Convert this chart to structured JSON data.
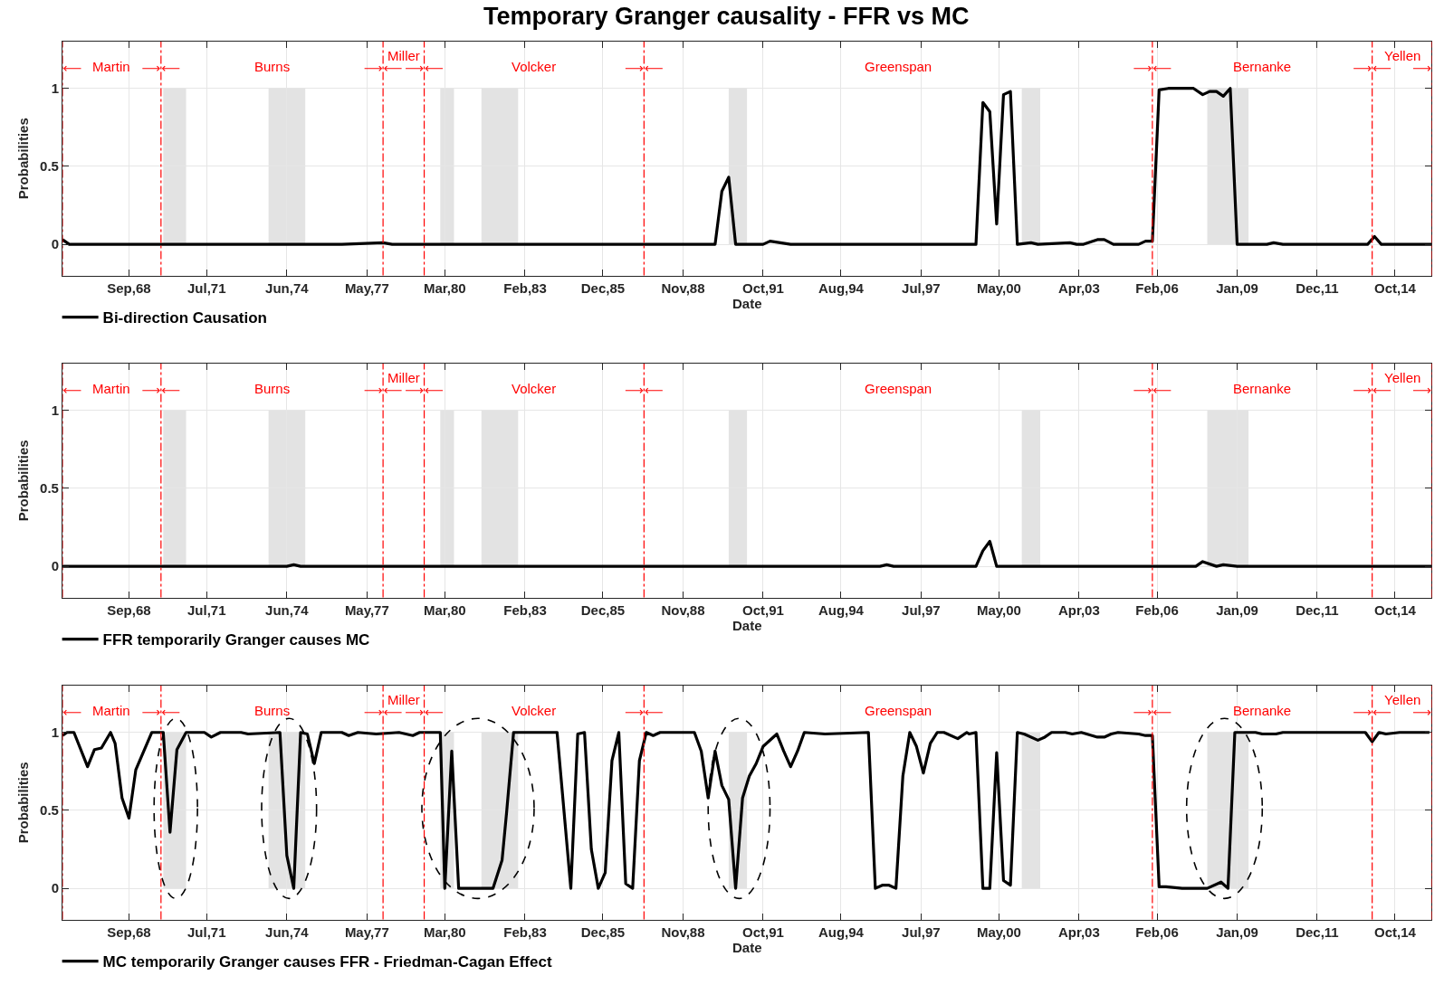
{
  "chart_data": [
    {
      "type": "line",
      "title": "Temporary Granger causality - FFR vs MC",
      "xlabel": "Date",
      "ylabel": "Probabilities",
      "series": [
        {
          "name": "Bi-direction Causation",
          "color": "#000000",
          "x": [
            "1966-04",
            "1966-07",
            "1974-06",
            "1976-06",
            "1977-12",
            "1978-04",
            "1990-01",
            "1990-04",
            "1990-07",
            "1990-10",
            "1991-10",
            "1992-01",
            "1992-10",
            "1999-07",
            "1999-10",
            "2000-01",
            "2000-04",
            "2000-07",
            "2000-10",
            "2001-01",
            "2001-07",
            "2001-10",
            "2002-12",
            "2003-03",
            "2003-06",
            "2003-12",
            "2004-03",
            "2004-07",
            "2005-06",
            "2005-09",
            "2005-12",
            "2006-03",
            "2006-07",
            "2007-01",
            "2007-06",
            "2007-10",
            "2008-01",
            "2008-04",
            "2008-07",
            "2008-10",
            "2009-01",
            "2010-02",
            "2010-05",
            "2010-09",
            "2013-10",
            "2014-01",
            "2014-04",
            "2016-02"
          ],
          "values": [
            0.03,
            0,
            0,
            0,
            0.01,
            0,
            0,
            0.34,
            0.43,
            0,
            0,
            0.02,
            0,
            0,
            0.91,
            0.85,
            0.13,
            0.96,
            0.98,
            0,
            0.01,
            0,
            0.01,
            0,
            0,
            0.03,
            0.03,
            0,
            0,
            0.02,
            0.02,
            0.99,
            1,
            1,
            1,
            0.96,
            0.98,
            0.98,
            0.95,
            1,
            0,
            0,
            0.01,
            0,
            0,
            0.05,
            0,
            0
          ]
        }
      ],
      "xlim": [
        "1966-04",
        "2016-02"
      ],
      "ylim": [
        -0.2,
        1.3
      ],
      "yticks": [
        0,
        0.5,
        1
      ],
      "xticks": [
        {
          "value": "1968-09",
          "label": "Sep,68"
        },
        {
          "value": "1971-07",
          "label": "Jul,71"
        },
        {
          "value": "1974-06",
          "label": "Jun,74"
        },
        {
          "value": "1977-05",
          "label": "May,77"
        },
        {
          "value": "1980-03",
          "label": "Mar,80"
        },
        {
          "value": "1983-02",
          "label": "Feb,83"
        },
        {
          "value": "1985-12",
          "label": "Dec,85"
        },
        {
          "value": "1988-11",
          "label": "Nov,88"
        },
        {
          "value": "1991-10",
          "label": "Oct,91"
        },
        {
          "value": "1994-08",
          "label": "Aug,94"
        },
        {
          "value": "1997-07",
          "label": "Jul,97"
        },
        {
          "value": "2000-05",
          "label": "May,00"
        },
        {
          "value": "2003-04",
          "label": "Apr,03"
        },
        {
          "value": "2006-02",
          "label": "Feb,06"
        },
        {
          "value": "2009-01",
          "label": "Jan,09"
        },
        {
          "value": "2011-12",
          "label": "Dec,11"
        },
        {
          "value": "2014-10",
          "label": "Oct,14"
        }
      ],
      "grid": true,
      "legend": "bottom left",
      "ref_lines": [
        {
          "axis": "x",
          "value": "1966-04",
          "label": "Martin",
          "color": "#ff0000",
          "line_style": "dashdot"
        },
        {
          "axis": "x",
          "value": "1969-11",
          "label": "Burns",
          "color": "#ff0000",
          "line_style": "dashdot"
        },
        {
          "axis": "x",
          "value": "1977-12",
          "label": "Miller",
          "color": "#ff0000",
          "line_style": "dashdot"
        },
        {
          "axis": "x",
          "value": "1979-06",
          "label": "Volcker",
          "color": "#ff0000",
          "line_style": "dashdot"
        },
        {
          "axis": "x",
          "value": "1987-06",
          "label": "Greenspan",
          "color": "#ff0000",
          "line_style": "dashdot"
        },
        {
          "axis": "x",
          "value": "2005-12",
          "label": "Bernanke",
          "color": "#ff0000",
          "line_style": "dashdot"
        },
        {
          "axis": "x",
          "value": "2013-12",
          "label": "Yellen",
          "color": "#ff0000",
          "line_style": "dashdot"
        },
        {
          "axis": "x",
          "value": "2016-02",
          "color": "#ff0000",
          "line_style": "dashdot"
        }
      ],
      "bands": [
        {
          "axis": "x",
          "from": "1969-12",
          "to": "1970-10",
          "color": "#e3e3e3"
        },
        {
          "axis": "x",
          "from": "1973-10",
          "to": "1975-02",
          "color": "#e3e3e3"
        },
        {
          "axis": "x",
          "from": "1980-01",
          "to": "1980-07",
          "color": "#e3e3e3"
        },
        {
          "axis": "x",
          "from": "1981-07",
          "to": "1982-11",
          "color": "#e3e3e3"
        },
        {
          "axis": "x",
          "from": "1990-07",
          "to": "1991-03",
          "color": "#e3e3e3"
        },
        {
          "axis": "x",
          "from": "2001-03",
          "to": "2001-11",
          "color": "#e3e3e3"
        },
        {
          "axis": "x",
          "from": "2007-12",
          "to": "2009-06",
          "color": "#e3e3e3"
        }
      ]
    },
    {
      "type": "line",
      "xlabel": "Date",
      "ylabel": "Probabilities",
      "series": [
        {
          "name": "FFR temporarily Granger causes MC",
          "color": "#000000",
          "x": [
            "1966-04",
            "1974-06",
            "1974-09",
            "1974-12",
            "1996-01",
            "1996-04",
            "1996-07",
            "1999-07",
            "1999-10",
            "2000-01",
            "2000-04",
            "2007-07",
            "2007-10",
            "2008-04",
            "2008-07",
            "2009-01",
            "2016-02"
          ],
          "values": [
            0,
            0,
            0.01,
            0,
            0,
            0.01,
            0,
            0,
            0.1,
            0.16,
            0,
            0,
            0.03,
            0,
            0.01,
            0,
            0
          ]
        }
      ],
      "xlim": [
        "1966-04",
        "2016-02"
      ],
      "ylim": [
        -0.2,
        1.3
      ],
      "yticks": [
        0,
        0.5,
        1
      ],
      "xticks": [
        {
          "value": "1968-09",
          "label": "Sep,68"
        },
        {
          "value": "1971-07",
          "label": "Jul,71"
        },
        {
          "value": "1974-06",
          "label": "Jun,74"
        },
        {
          "value": "1977-05",
          "label": "May,77"
        },
        {
          "value": "1980-03",
          "label": "Mar,80"
        },
        {
          "value": "1983-02",
          "label": "Feb,83"
        },
        {
          "value": "1985-12",
          "label": "Dec,85"
        },
        {
          "value": "1988-11",
          "label": "Nov,88"
        },
        {
          "value": "1991-10",
          "label": "Oct,91"
        },
        {
          "value": "1994-08",
          "label": "Aug,94"
        },
        {
          "value": "1997-07",
          "label": "Jul,97"
        },
        {
          "value": "2000-05",
          "label": "May,00"
        },
        {
          "value": "2003-04",
          "label": "Apr,03"
        },
        {
          "value": "2006-02",
          "label": "Feb,06"
        },
        {
          "value": "2009-01",
          "label": "Jan,09"
        },
        {
          "value": "2011-12",
          "label": "Dec,11"
        },
        {
          "value": "2014-10",
          "label": "Oct,14"
        }
      ],
      "grid": true,
      "legend": "bottom left",
      "ref_lines": [
        {
          "axis": "x",
          "value": "1966-04",
          "label": "Martin",
          "color": "#ff0000",
          "line_style": "dashdot"
        },
        {
          "axis": "x",
          "value": "1969-11",
          "label": "Burns",
          "color": "#ff0000",
          "line_style": "dashdot"
        },
        {
          "axis": "x",
          "value": "1977-12",
          "label": "Miller",
          "color": "#ff0000",
          "line_style": "dashdot"
        },
        {
          "axis": "x",
          "value": "1979-06",
          "label": "Volcker",
          "color": "#ff0000",
          "line_style": "dashdot"
        },
        {
          "axis": "x",
          "value": "1987-06",
          "label": "Greenspan",
          "color": "#ff0000",
          "line_style": "dashdot"
        },
        {
          "axis": "x",
          "value": "2005-12",
          "label": "Bernanke",
          "color": "#ff0000",
          "line_style": "dashdot"
        },
        {
          "axis": "x",
          "value": "2013-12",
          "label": "Yellen",
          "color": "#ff0000",
          "line_style": "dashdot"
        },
        {
          "axis": "x",
          "value": "2016-02",
          "color": "#ff0000",
          "line_style": "dashdot"
        }
      ],
      "bands": [
        {
          "axis": "x",
          "from": "1969-12",
          "to": "1970-10",
          "color": "#e3e3e3"
        },
        {
          "axis": "x",
          "from": "1973-10",
          "to": "1975-02",
          "color": "#e3e3e3"
        },
        {
          "axis": "x",
          "from": "1980-01",
          "to": "1980-07",
          "color": "#e3e3e3"
        },
        {
          "axis": "x",
          "from": "1981-07",
          "to": "1982-11",
          "color": "#e3e3e3"
        },
        {
          "axis": "x",
          "from": "1990-07",
          "to": "1991-03",
          "color": "#e3e3e3"
        },
        {
          "axis": "x",
          "from": "2001-03",
          "to": "2001-11",
          "color": "#e3e3e3"
        },
        {
          "axis": "x",
          "from": "2007-12",
          "to": "2009-06",
          "color": "#e3e3e3"
        }
      ]
    },
    {
      "type": "line",
      "xlabel": "Date",
      "ylabel": "Probabilities",
      "series": [
        {
          "name": "MC temporarily Granger causes FFR - Friedman-Cagan Effect",
          "color": "#000000",
          "x": [
            "1966-04",
            "1966-06",
            "1966-09",
            "1967-03",
            "1967-06",
            "1967-09",
            "1968-01",
            "1968-03",
            "1968-06",
            "1968-09",
            "1968-12",
            "1969-07",
            "1969-12",
            "1970-03",
            "1970-06",
            "1970-10",
            "1971-06",
            "1971-09",
            "1972-01",
            "1972-10",
            "1973-01",
            "1974-03",
            "1974-06",
            "1974-09",
            "1974-12",
            "1975-03",
            "1975-06",
            "1975-09",
            "1976-06",
            "1976-09",
            "1977-01",
            "1977-09",
            "1978-07",
            "1979-01",
            "1979-04",
            "1980-01",
            "1980-03",
            "1980-06",
            "1980-09",
            "1981-12",
            "1982-04",
            "1982-06",
            "1982-09",
            "1984-04",
            "1984-10",
            "1985-01",
            "1985-04",
            "1985-07",
            "1985-10",
            "1986-01",
            "1986-04",
            "1986-07",
            "1986-10",
            "1987-01",
            "1987-04",
            "1987-07",
            "1987-10",
            "1988-01",
            "1989-04",
            "1989-07",
            "1989-10",
            "1990-01",
            "1990-04",
            "1990-07",
            "1990-10",
            "1991-01",
            "1991-04",
            "1991-07",
            "1991-10",
            "1992-04",
            "1992-07",
            "1992-10",
            "1993-01",
            "1993-04",
            "1994-01",
            "1995-08",
            "1995-11",
            "1996-02",
            "1996-05",
            "1996-08",
            "1996-11",
            "1997-02",
            "1997-05",
            "1997-08",
            "1997-11",
            "1998-02",
            "1998-05",
            "1998-11",
            "1999-03",
            "1999-04",
            "1999-07",
            "1999-10",
            "2000-01",
            "2000-04",
            "2000-07",
            "2000-10",
            "2001-01",
            "2001-04",
            "2001-10",
            "2002-01",
            "2002-04",
            "2002-10",
            "2003-01",
            "2003-05",
            "2003-12",
            "2004-03",
            "2004-06",
            "2004-09",
            "2005-06",
            "2005-09",
            "2005-12",
            "2006-03",
            "2006-06",
            "2007-01",
            "2007-12",
            "2008-06",
            "2008-09",
            "2008-12",
            "2009-09",
            "2009-12",
            "2010-06",
            "2010-09",
            "2013-09",
            "2013-12",
            "2014-03",
            "2014-06",
            "2014-12",
            "2015-09",
            "2016-01"
          ],
          "values": [
            0.98,
            1,
            1,
            0.78,
            0.89,
            0.9,
            1,
            0.93,
            0.58,
            0.45,
            0.76,
            1,
            1,
            0.36,
            0.89,
            1,
            1,
            0.97,
            1,
            1,
            0.99,
            1,
            0.21,
            0,
            1,
            0.99,
            0.8,
            1,
            1,
            0.98,
            1,
            0.99,
            1,
            0.98,
            1,
            1,
            0,
            0.88,
            0,
            0,
            0.18,
            0.49,
            1,
            1,
            0,
            0.99,
            1,
            0.25,
            0,
            0.1,
            0.82,
            1,
            0.03,
            0,
            0.82,
            1,
            0.98,
            1,
            1,
            0.88,
            0.58,
            0.88,
            0.66,
            0.57,
            0,
            0.58,
            0.72,
            0.8,
            0.91,
            0.99,
            0.88,
            0.78,
            0.88,
            1,
            0.99,
            1,
            0,
            0.02,
            0.02,
            0,
            0.72,
            1,
            0.91,
            0.74,
            0.93,
            1,
            1,
            0.96,
            1,
            0.99,
            1,
            0,
            0,
            0.87,
            0.05,
            0.02,
            1,
            0.99,
            0.95,
            0.97,
            1,
            1,
            0.99,
            1,
            0.97,
            0.97,
            0.99,
            1,
            0.99,
            0.98,
            0.98,
            0.01,
            0.01,
            0,
            0,
            0.04,
            0,
            1,
            1,
            0.99,
            0.99,
            1,
            1,
            0.94,
            1,
            0.99,
            1,
            1,
            1
          ]
        }
      ],
      "xlim": [
        "1966-04",
        "2016-02"
      ],
      "ylim": [
        -0.2,
        1.3
      ],
      "yticks": [
        0,
        0.5,
        1
      ],
      "xticks": [
        {
          "value": "1968-09",
          "label": "Sep,68"
        },
        {
          "value": "1971-07",
          "label": "Jul,71"
        },
        {
          "value": "1974-06",
          "label": "Jun,74"
        },
        {
          "value": "1977-05",
          "label": "May,77"
        },
        {
          "value": "1980-03",
          "label": "Mar,80"
        },
        {
          "value": "1983-02",
          "label": "Feb,83"
        },
        {
          "value": "1985-12",
          "label": "Dec,85"
        },
        {
          "value": "1988-11",
          "label": "Nov,88"
        },
        {
          "value": "1991-10",
          "label": "Oct,91"
        },
        {
          "value": "1994-08",
          "label": "Aug,94"
        },
        {
          "value": "1997-07",
          "label": "Jul,97"
        },
        {
          "value": "2000-05",
          "label": "May,00"
        },
        {
          "value": "2003-04",
          "label": "Apr,03"
        },
        {
          "value": "2006-02",
          "label": "Feb,06"
        },
        {
          "value": "2009-01",
          "label": "Jan,09"
        },
        {
          "value": "2011-12",
          "label": "Dec,11"
        },
        {
          "value": "2014-10",
          "label": "Oct,14"
        }
      ],
      "grid": true,
      "legend": "bottom left",
      "ref_lines": [
        {
          "axis": "x",
          "value": "1966-04",
          "label": "Martin",
          "color": "#ff0000",
          "line_style": "dashdot"
        },
        {
          "axis": "x",
          "value": "1969-11",
          "label": "Burns",
          "color": "#ff0000",
          "line_style": "dashdot"
        },
        {
          "axis": "x",
          "value": "1977-12",
          "label": "Miller",
          "color": "#ff0000",
          "line_style": "dashdot"
        },
        {
          "axis": "x",
          "value": "1979-06",
          "label": "Volcker",
          "color": "#ff0000",
          "line_style": "dashdot"
        },
        {
          "axis": "x",
          "value": "1987-06",
          "label": "Greenspan",
          "color": "#ff0000",
          "line_style": "dashdot"
        },
        {
          "axis": "x",
          "value": "2005-12",
          "label": "Bernanke",
          "color": "#ff0000",
          "line_style": "dashdot"
        },
        {
          "axis": "x",
          "value": "2013-12",
          "label": "Yellen",
          "color": "#ff0000",
          "line_style": "dashdot"
        },
        {
          "axis": "x",
          "value": "2016-02",
          "color": "#ff0000",
          "line_style": "dashdot"
        }
      ],
      "bands": [
        {
          "axis": "x",
          "from": "1969-12",
          "to": "1970-10",
          "color": "#e3e3e3"
        },
        {
          "axis": "x",
          "from": "1973-10",
          "to": "1975-02",
          "color": "#e3e3e3"
        },
        {
          "axis": "x",
          "from": "1980-01",
          "to": "1980-07",
          "color": "#e3e3e3"
        },
        {
          "axis": "x",
          "from": "1981-07",
          "to": "1982-11",
          "color": "#e3e3e3"
        },
        {
          "axis": "x",
          "from": "1990-07",
          "to": "1991-03",
          "color": "#e3e3e3"
        },
        {
          "axis": "x",
          "from": "2001-03",
          "to": "2001-11",
          "color": "#e3e3e3"
        },
        {
          "axis": "x",
          "from": "2007-12",
          "to": "2009-06",
          "color": "#e3e3e3"
        }
      ]
    }
  ]
}
